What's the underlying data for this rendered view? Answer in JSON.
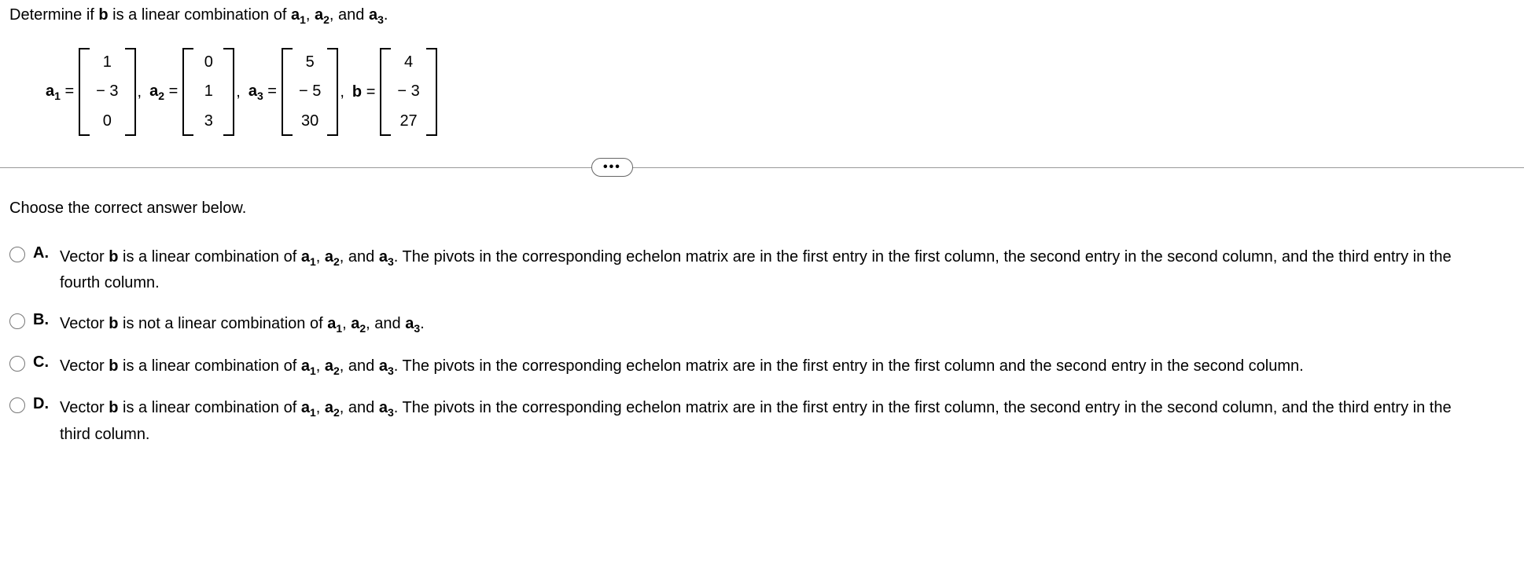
{
  "prompt": {
    "pre": "Determine if ",
    "b": "b",
    "mid1": " is a linear combination of ",
    "a1": "a",
    "s1": "1",
    "c1": ", ",
    "a2": "a",
    "s2": "2",
    "c2": ", and ",
    "a3": "a",
    "s3": "3",
    "end": "."
  },
  "vectors": {
    "a1": {
      "label_a": "a",
      "label_sub": "1",
      "eq": " = ",
      "v0": "1",
      "v1": "− 3",
      "v2": "0"
    },
    "a2": {
      "label_a": "a",
      "label_sub": "2",
      "eq": " = ",
      "v0": "0",
      "v1": "1",
      "v2": "3"
    },
    "a3": {
      "label_a": "a",
      "label_sub": "3",
      "eq": " = ",
      "v0": "5",
      "v1": "− 5",
      "v2": "30"
    },
    "b": {
      "label_a": "b",
      "eq": " = ",
      "v0": "4",
      "v1": "− 3",
      "v2": "27"
    },
    "comma": ","
  },
  "ellipsis": "•••",
  "choose": "Choose the correct answer below.",
  "options": {
    "A": {
      "letter": "A.",
      "pre": "Vector ",
      "b": "b",
      "mid1": " is a linear combination of ",
      "a1": "a",
      "s1": "1",
      "c1": ", ",
      "a2": "a",
      "s2": "2",
      "c2": ", and ",
      "a3": "a",
      "s3": "3",
      "rest": ". The pivots in the corresponding echelon matrix are in the first entry in the first column, the second entry in the second column, and the third entry in the fourth column."
    },
    "B": {
      "letter": "B.",
      "pre": "Vector ",
      "b": "b",
      "mid1": " is not a linear combination of ",
      "a1": "a",
      "s1": "1",
      "c1": ", ",
      "a2": "a",
      "s2": "2",
      "c2": ", and ",
      "a3": "a",
      "s3": "3",
      "rest": "."
    },
    "C": {
      "letter": "C.",
      "pre": "Vector ",
      "b": "b",
      "mid1": " is a linear combination of ",
      "a1": "a",
      "s1": "1",
      "c1": ", ",
      "a2": "a",
      "s2": "2",
      "c2": ", and ",
      "a3": "a",
      "s3": "3",
      "rest": ". The pivots in the corresponding echelon matrix are in the first entry in the first column and the second entry in the second column."
    },
    "D": {
      "letter": "D.",
      "pre": "Vector ",
      "b": "b",
      "mid1": " is a linear combination of ",
      "a1": "a",
      "s1": "1",
      "c1": ", ",
      "a2": "a",
      "s2": "2",
      "c2": ", and ",
      "a3": "a",
      "s3": "3",
      "rest": ". The pivots in the corresponding echelon matrix are in the first entry in the first column, the second entry in the second column, and the third entry in the third column."
    }
  }
}
